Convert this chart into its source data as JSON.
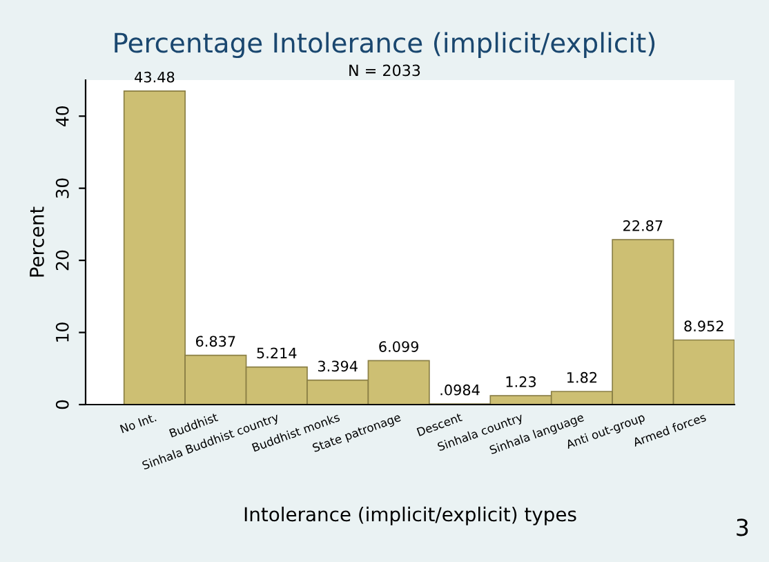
{
  "chart_data": {
    "type": "bar",
    "title": "Percentage Intolerance (implicit/explicit)",
    "subtitle": "N = 2033",
    "xlabel": "Intolerance (implicit/explicit) types",
    "ylabel": "Percent",
    "categories": [
      "No Int.",
      "Buddhist",
      "Sinhala Buddhist country",
      "Buddhist monks",
      "State patronage",
      "Descent",
      "Sinhala country",
      "Sinhala language",
      "Anti out-group",
      "Armed forces"
    ],
    "values": [
      43.48,
      6.837,
      5.214,
      3.394,
      6.099,
      0.0984,
      1.23,
      1.82,
      22.87,
      8.952
    ],
    "value_labels": [
      "43.48",
      "6.837",
      "5.214",
      "3.394",
      "6.099",
      ".0984",
      "1.23",
      "1.82",
      "22.87",
      "8.952"
    ],
    "color": "#cdbf73",
    "ylim": [
      0,
      45
    ],
    "yticks": [
      0,
      10,
      20,
      30,
      40
    ],
    "grid": false,
    "legend": false,
    "annotations": [
      "3"
    ]
  }
}
